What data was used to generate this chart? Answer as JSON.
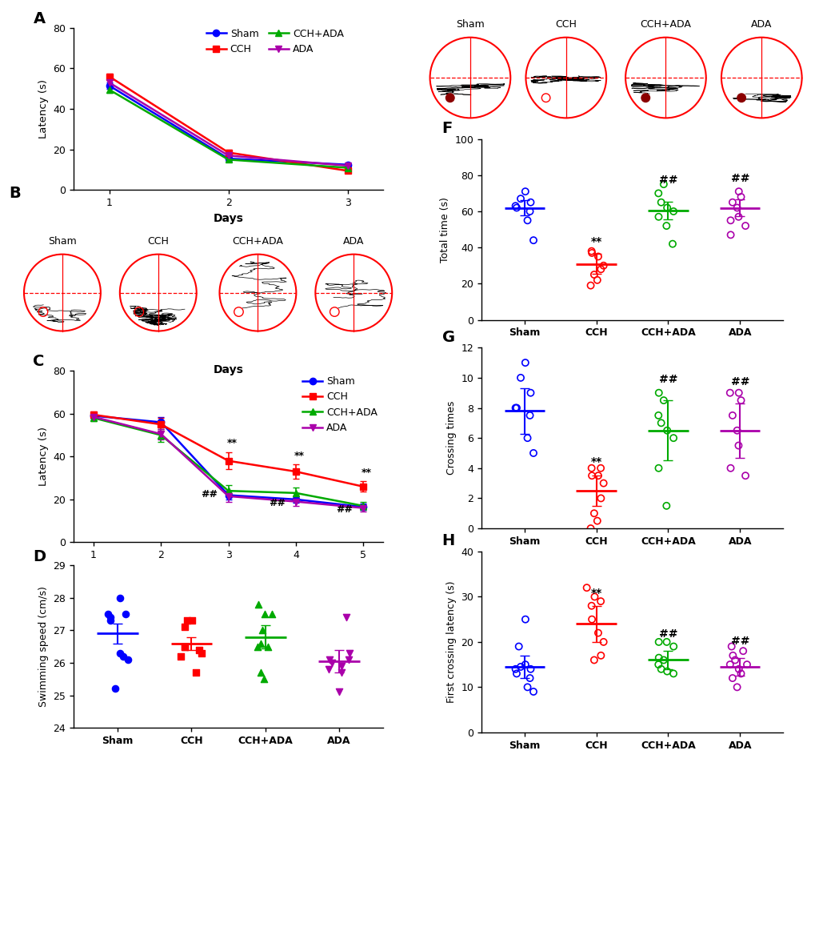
{
  "colors": {
    "sham": "#0000FF",
    "cch": "#FF0000",
    "cch_ada": "#00AA00",
    "ada": "#AA00AA"
  },
  "panel_A": {
    "days": [
      1,
      2,
      3
    ],
    "sham_mean": [
      51.5,
      15.5,
      12.5
    ],
    "cch_mean": [
      56.0,
      18.5,
      9.5
    ],
    "cch_ada_mean": [
      49.5,
      15.0,
      11.0
    ],
    "ada_mean": [
      53.0,
      17.0,
      12.0
    ],
    "sham_sem": [
      1.5,
      1.0,
      0.8
    ],
    "cch_sem": [
      1.5,
      1.2,
      0.9
    ],
    "cch_ada_sem": [
      1.5,
      1.1,
      0.8
    ],
    "ada_sem": [
      1.5,
      1.1,
      0.8
    ],
    "ylabel": "Latency (s)",
    "xlabel": "Days",
    "ylim": [
      0,
      80
    ],
    "yticks": [
      0,
      20,
      40,
      60,
      80
    ]
  },
  "panel_C": {
    "days": [
      1,
      2,
      3,
      4,
      5
    ],
    "sham_mean": [
      59.0,
      56.0,
      22.0,
      20.0,
      16.5
    ],
    "cch_mean": [
      59.5,
      55.0,
      38.0,
      33.0,
      26.0
    ],
    "cch_ada_mean": [
      58.0,
      50.0,
      24.0,
      23.0,
      17.0
    ],
    "ada_mean": [
      58.5,
      50.5,
      21.5,
      19.0,
      16.0
    ],
    "sham_sem": [
      1.5,
      2.5,
      2.0,
      1.5,
      1.5
    ],
    "cch_sem": [
      1.5,
      3.0,
      4.0,
      3.5,
      2.5
    ],
    "cch_ada_sem": [
      1.5,
      3.0,
      2.5,
      2.5,
      2.0
    ],
    "ada_sem": [
      1.5,
      2.5,
      2.5,
      2.0,
      1.8
    ],
    "ylabel": "Latency (s)",
    "xlabel": "Days",
    "ylim": [
      0,
      80
    ],
    "yticks": [
      0,
      20,
      40,
      60,
      80
    ]
  },
  "panel_D": {
    "groups": [
      "Sham",
      "CCH",
      "CCH+ADA",
      "ADA"
    ],
    "sham_pts": [
      25.2,
      26.1,
      26.2,
      26.3,
      27.3,
      27.4,
      27.5,
      27.5,
      28.0
    ],
    "cch_pts": [
      25.7,
      26.2,
      26.3,
      26.4,
      26.5,
      26.5,
      27.1,
      27.3,
      27.3
    ],
    "cch_ada_pts": [
      25.5,
      25.7,
      26.5,
      26.5,
      26.6,
      27.0,
      27.5,
      27.5,
      27.8
    ],
    "ada_pts": [
      25.1,
      25.7,
      25.8,
      25.9,
      26.0,
      26.1,
      26.1,
      26.3,
      27.4
    ],
    "sham_mean": 26.9,
    "sham_sem": 0.3,
    "cch_mean": 26.6,
    "cch_sem": 0.2,
    "cch_ada_mean": 26.8,
    "cch_ada_sem": 0.35,
    "ada_mean": 26.05,
    "ada_sem": 0.35,
    "ylabel": "Swimming speed (cm/s)",
    "ylim": [
      24,
      29
    ],
    "yticks": [
      24,
      25,
      26,
      27,
      28,
      29
    ]
  },
  "panel_F": {
    "groups": [
      "Sham",
      "CCH",
      "CCH+ADA",
      "ADA"
    ],
    "sham_pts": [
      44.0,
      55.0,
      60.0,
      62.0,
      63.0,
      65.0,
      67.0,
      71.0
    ],
    "cch_pts": [
      19.0,
      22.0,
      25.0,
      28.0,
      30.0,
      35.0,
      37.0,
      38.0
    ],
    "cch_ada_pts": [
      42.0,
      52.0,
      57.0,
      60.0,
      62.0,
      65.0,
      70.0,
      75.0
    ],
    "ada_pts": [
      47.0,
      52.0,
      55.0,
      57.0,
      62.0,
      65.0,
      68.0,
      71.0
    ],
    "sham_mean": 62.0,
    "sham_sem": 4.0,
    "cch_mean": 31.0,
    "cch_sem": 5.5,
    "cch_ada_mean": 60.5,
    "cch_ada_sem": 5.0,
    "ada_mean": 62.0,
    "ada_sem": 4.5,
    "ylabel": "Total time (s)",
    "ylim": [
      0,
      100
    ],
    "yticks": [
      0,
      20,
      40,
      60,
      80,
      100
    ]
  },
  "panel_G": {
    "groups": [
      "Sham",
      "CCH",
      "CCH+ADA",
      "ADA"
    ],
    "sham_pts": [
      5.0,
      6.0,
      7.5,
      8.0,
      8.0,
      9.0,
      10.0,
      11.0
    ],
    "cch_pts": [
      0.0,
      0.5,
      1.0,
      2.0,
      3.0,
      3.5,
      3.5,
      4.0,
      4.0
    ],
    "cch_ada_pts": [
      1.5,
      4.0,
      6.0,
      6.5,
      7.0,
      7.5,
      8.5,
      9.0
    ],
    "ada_pts": [
      3.5,
      4.0,
      5.5,
      6.5,
      7.5,
      8.5,
      9.0,
      9.0
    ],
    "sham_mean": 7.8,
    "sham_sem": 1.5,
    "cch_mean": 2.5,
    "cch_sem": 1.0,
    "cch_ada_mean": 6.5,
    "cch_ada_sem": 2.0,
    "ada_mean": 6.5,
    "ada_sem": 1.8,
    "ylabel": "Crossing times",
    "ylim": [
      0,
      12
    ],
    "yticks": [
      0,
      2,
      4,
      6,
      8,
      10,
      12
    ]
  },
  "panel_H": {
    "groups": [
      "Sham",
      "CCH",
      "CCH+ADA",
      "ADA"
    ],
    "sham_pts": [
      9.0,
      10.0,
      12.0,
      13.0,
      14.0,
      14.0,
      14.5,
      15.0,
      19.0,
      25.0
    ],
    "cch_pts": [
      16.0,
      17.0,
      20.0,
      22.0,
      25.0,
      28.0,
      29.0,
      30.0,
      32.0
    ],
    "cch_ada_pts": [
      13.0,
      13.5,
      14.0,
      15.0,
      16.0,
      16.5,
      19.0,
      20.0,
      20.0
    ],
    "ada_pts": [
      10.0,
      12.0,
      13.0,
      14.0,
      15.0,
      15.0,
      16.0,
      17.0,
      18.0,
      19.0
    ],
    "sham_mean": 14.5,
    "sham_sem": 2.5,
    "cch_mean": 24.0,
    "cch_sem": 4.0,
    "cch_ada_mean": 16.0,
    "cch_ada_sem": 2.0,
    "ada_mean": 14.5,
    "ada_sem": 2.0,
    "ylabel": "First crossing latency (s)",
    "ylim": [
      0,
      40
    ],
    "yticks": [
      0,
      10,
      20,
      30,
      40
    ]
  }
}
